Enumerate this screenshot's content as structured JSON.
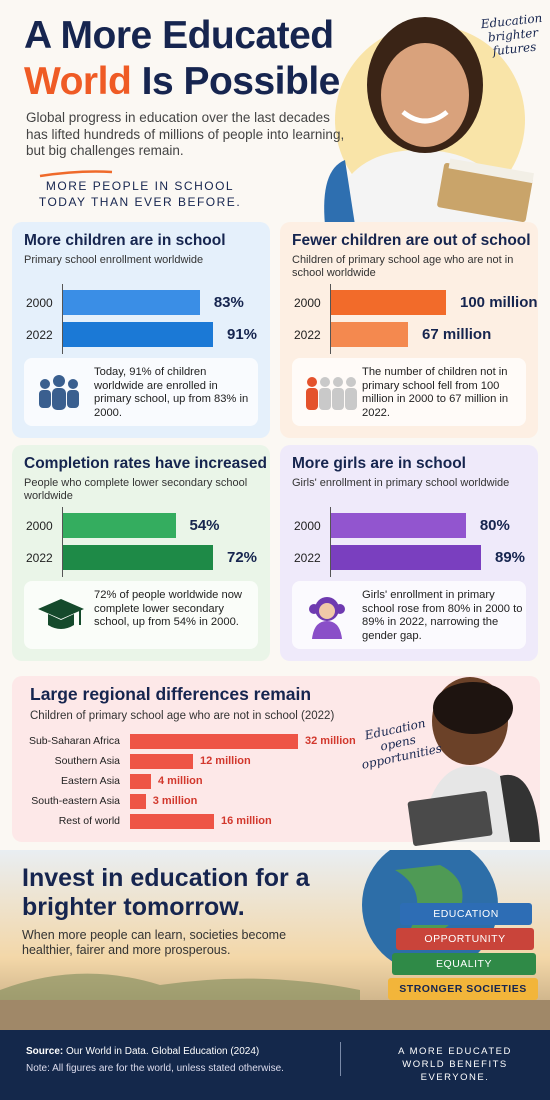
{
  "header": {
    "title_line1": "A More Educated",
    "title_highlight": "World",
    "title_rest": "Is Possible",
    "subtitle": "Global progress in education over the last decades has lifted hundreds of millions of people into learning, but big challenges remain.",
    "tagline": "MORE PEOPLE IN SCHOOL TODAY THAN EVER BEFORE.",
    "badge": "Education brighter futures"
  },
  "chart_data": [
    {
      "type": "bar",
      "title": "More children are in school",
      "subtitle": "Primary school enrollment worldwide",
      "categories": [
        "2000",
        "2022"
      ],
      "values": [
        83,
        91
      ],
      "value_labels": [
        "83%",
        "91%"
      ],
      "colors": [
        "#3a8ee6",
        "#1b79d6"
      ],
      "note": "Today, 91% of children worldwide are enrolled in primary school, up from 83% in 2000."
    },
    {
      "type": "bar",
      "title": "Fewer children are out of school",
      "subtitle": "Children of primary school age who are not in school worldwide",
      "categories": [
        "2000",
        "2022"
      ],
      "values": [
        100,
        67
      ],
      "value_labels": [
        "100 million",
        "67 million"
      ],
      "colors": [
        "#f26b2a",
        "#f4894f"
      ],
      "note": "The number of children not in primary school fell from 100 million in 2000 to 67 million in 2022."
    },
    {
      "type": "bar",
      "title": "Completion rates have increased",
      "subtitle": "People who complete lower secondary school worldwide",
      "categories": [
        "2000",
        "2022"
      ],
      "values": [
        54,
        72
      ],
      "value_labels": [
        "54%",
        "72%"
      ],
      "colors": [
        "#34ad5f",
        "#1e8a47"
      ],
      "note": "72% of people worldwide now complete lower secondary school, up from 54% in 2000."
    },
    {
      "type": "bar",
      "title": "More girls are in school",
      "subtitle": "Girls' enrollment in primary school worldwide",
      "categories": [
        "2000",
        "2022"
      ],
      "values": [
        80,
        89
      ],
      "value_labels": [
        "80%",
        "89%"
      ],
      "colors": [
        "#9255cf",
        "#7a3fbf"
      ],
      "note": "Girls' enrollment in primary school rose from 80% in 2000 to 89% in 2022, narrowing the gender gap."
    },
    {
      "type": "bar",
      "title": "Large regional differences remain",
      "subtitle": "Children of primary school age who are not in school (2022)",
      "categories": [
        "Sub-Saharan Africa",
        "Southern Asia",
        "Eastern Asia",
        "South-eastern Asia",
        "Rest of world"
      ],
      "values": [
        32,
        12,
        4,
        3,
        16
      ],
      "value_labels": [
        "32 million",
        "12 million",
        "4 million",
        "3 million",
        "16 million"
      ],
      "colors": [
        "#ee5446"
      ],
      "annotation": "Education opens opportunities"
    }
  ],
  "banner": {
    "title": "Invest in education for a brighter tomorrow.",
    "text": "When more people can learn, societies become healthier, fairer and more prosperous.",
    "books": [
      "EDUCATION",
      "OPPORTUNITY",
      "EQUALITY",
      "STRONGER SOCIETIES"
    ]
  },
  "footer": {
    "source_label": "Source:",
    "source": "Our World in Data. Global Education (2024)",
    "note": "Note: All figures are for the world, unless stated otherwise.",
    "slogan": "A MORE EDUCATED WORLD BENEFITS EVERYONE."
  }
}
